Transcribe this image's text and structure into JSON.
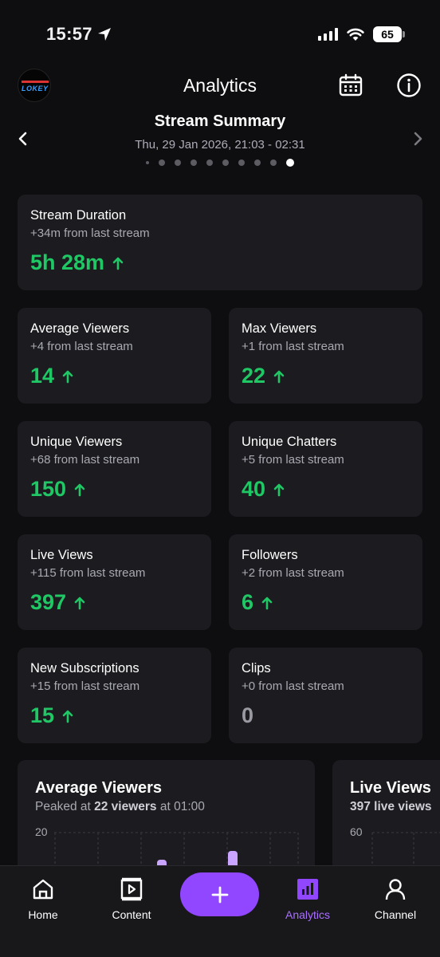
{
  "status_bar": {
    "time": "15:57",
    "battery": "65"
  },
  "header": {
    "title": "Analytics"
  },
  "summary": {
    "title": "Stream Summary",
    "date": "Thu, 29 Jan 2026, 21:03 - 02:31",
    "page_count": 10,
    "active_page": 10
  },
  "cards": [
    {
      "title": "Stream Duration",
      "change": "+34m from last stream",
      "value": "5h 28m",
      "trend": "up"
    },
    {
      "title": "Average Viewers",
      "change": "+4 from last stream",
      "value": "14",
      "trend": "up"
    },
    {
      "title": "Max Viewers",
      "change": "+1 from last stream",
      "value": "22",
      "trend": "up"
    },
    {
      "title": "Unique Viewers",
      "change": "+68 from last stream",
      "value": "150",
      "trend": "up"
    },
    {
      "title": "Unique Chatters",
      "change": "+5 from last stream",
      "value": "40",
      "trend": "up"
    },
    {
      "title": "Live Views",
      "change": "+115 from last stream",
      "value": "397",
      "trend": "up"
    },
    {
      "title": "Followers",
      "change": "+2 from last stream",
      "value": "6",
      "trend": "up"
    },
    {
      "title": "New Subscriptions",
      "change": "+15 from last stream",
      "value": "15",
      "trend": "up"
    },
    {
      "title": "Clips",
      "change": "+0 from last stream",
      "value": "0",
      "trend": "none"
    }
  ],
  "charts": [
    {
      "title": "Average Viewers",
      "sub_pre": "Peaked at ",
      "sub_bold": "22 viewers",
      "sub_post": " at 01:00",
      "tick_top": "20"
    },
    {
      "title": "Live Views",
      "sub_pre": "",
      "sub_bold": "397 live views",
      "sub_post": "",
      "tick_top": "60"
    }
  ],
  "tabs": [
    {
      "label": "Home",
      "icon": "home-icon"
    },
    {
      "label": "Content",
      "icon": "content-icon"
    },
    {
      "label": "Analytics",
      "icon": "analytics-icon",
      "active": true
    },
    {
      "label": "Channel",
      "icon": "channel-icon"
    }
  ],
  "colors": {
    "accent": "#9147ff",
    "positive": "#1fc765",
    "card": "#1c1c20",
    "background": "#0e0e10"
  }
}
